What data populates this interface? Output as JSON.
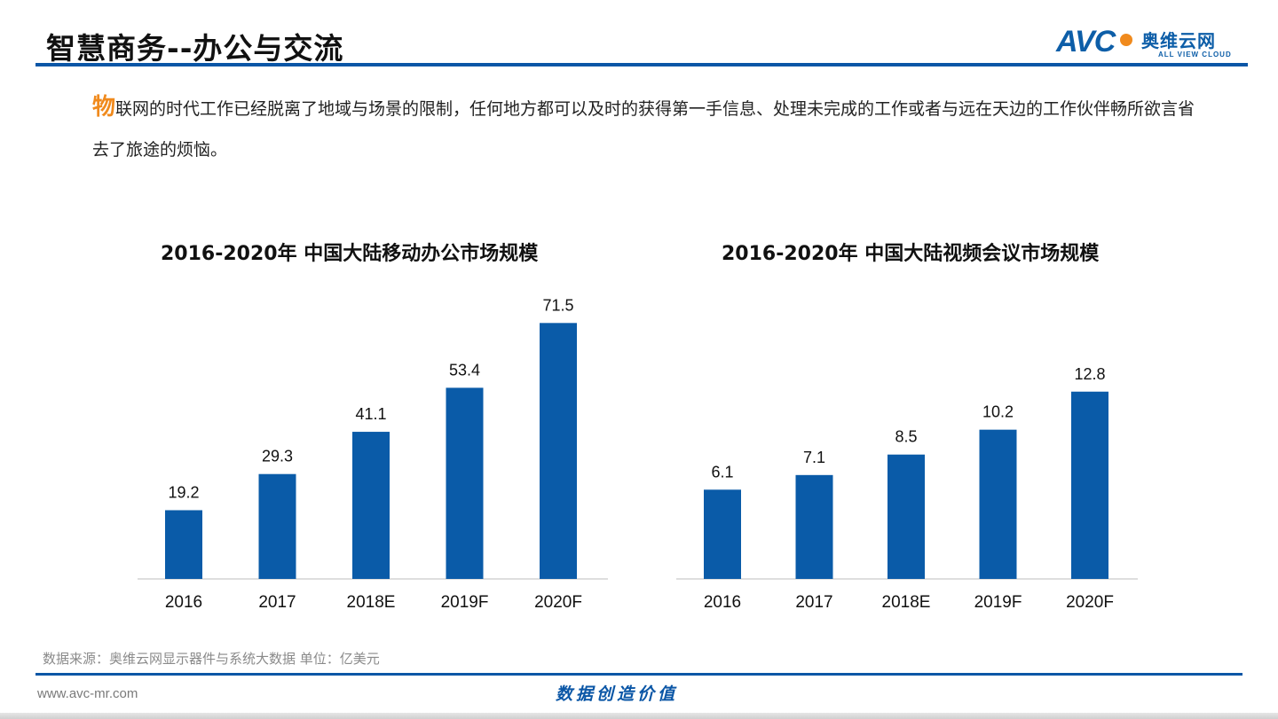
{
  "header": {
    "title": "智慧商务--办公与交流",
    "logo": {
      "brand": "AVC",
      "name_cn": "奥维云网",
      "name_en": "ALL VIEW CLOUD"
    }
  },
  "intro": {
    "lead_char": "物",
    "text": "联网的时代工作已经脱离了地域与场景的限制，任何地方都可以及时的获得第一手信息、处理未完成的工作或者与远在天边的工作伙伴畅所欲言省去了旅途的烦恼。"
  },
  "colors": {
    "bar": "#0a5ba8",
    "accent": "#f08a1d",
    "rule": "#0a56a6"
  },
  "chart_data": [
    {
      "type": "bar",
      "title": "2016-2020年 中国大陆移动办公市场规模",
      "categories": [
        "2016",
        "2017",
        "2018E",
        "2019F",
        "2020F"
      ],
      "values": [
        19.2,
        29.3,
        41.1,
        53.4,
        71.5
      ],
      "ylim": [
        0,
        80
      ],
      "grid": false,
      "legend": "none"
    },
    {
      "type": "bar",
      "title": "2016-2020年 中国大陆视频会议市场规模",
      "categories": [
        "2016",
        "2017",
        "2018E",
        "2019F",
        "2020F"
      ],
      "values": [
        6.1,
        7.1,
        8.5,
        10.2,
        12.8
      ],
      "ylim": [
        0,
        14.3
      ],
      "grid": false,
      "legend": "none"
    }
  ],
  "footer": {
    "source": "数据来源：奥维云网显示器件与系统大数据    单位：亿美元",
    "url": "www.avc-mr.com",
    "slogan": "数据创造价值"
  }
}
